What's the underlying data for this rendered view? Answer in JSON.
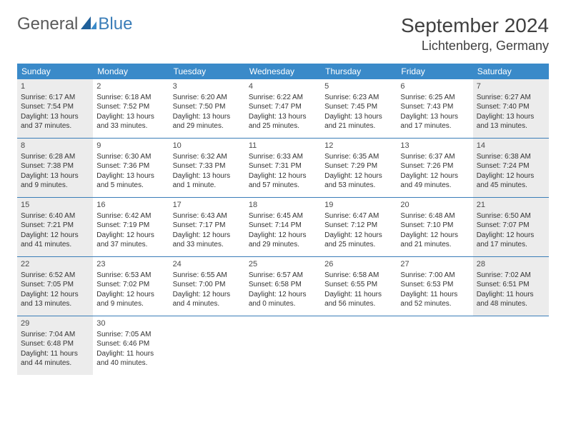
{
  "logo": {
    "text1": "General",
    "text2": "Blue"
  },
  "title": "September 2024",
  "location": "Lichtenberg, Germany",
  "colors": {
    "header_bg": "#3a8ac9",
    "header_text": "#ffffff",
    "border": "#3a7db8",
    "shaded_bg": "#ececec",
    "body_text": "#333333",
    "title_text": "#404040",
    "logo_gray": "#5a5a5a",
    "logo_blue": "#3a7db8"
  },
  "day_names": [
    "Sunday",
    "Monday",
    "Tuesday",
    "Wednesday",
    "Thursday",
    "Friday",
    "Saturday"
  ],
  "weeks": [
    [
      {
        "num": "1",
        "shaded": true,
        "sunrise": "Sunrise: 6:17 AM",
        "sunset": "Sunset: 7:54 PM",
        "day1": "Daylight: 13 hours",
        "day2": "and 37 minutes."
      },
      {
        "num": "2",
        "shaded": false,
        "sunrise": "Sunrise: 6:18 AM",
        "sunset": "Sunset: 7:52 PM",
        "day1": "Daylight: 13 hours",
        "day2": "and 33 minutes."
      },
      {
        "num": "3",
        "shaded": false,
        "sunrise": "Sunrise: 6:20 AM",
        "sunset": "Sunset: 7:50 PM",
        "day1": "Daylight: 13 hours",
        "day2": "and 29 minutes."
      },
      {
        "num": "4",
        "shaded": false,
        "sunrise": "Sunrise: 6:22 AM",
        "sunset": "Sunset: 7:47 PM",
        "day1": "Daylight: 13 hours",
        "day2": "and 25 minutes."
      },
      {
        "num": "5",
        "shaded": false,
        "sunrise": "Sunrise: 6:23 AM",
        "sunset": "Sunset: 7:45 PM",
        "day1": "Daylight: 13 hours",
        "day2": "and 21 minutes."
      },
      {
        "num": "6",
        "shaded": false,
        "sunrise": "Sunrise: 6:25 AM",
        "sunset": "Sunset: 7:43 PM",
        "day1": "Daylight: 13 hours",
        "day2": "and 17 minutes."
      },
      {
        "num": "7",
        "shaded": true,
        "sunrise": "Sunrise: 6:27 AM",
        "sunset": "Sunset: 7:40 PM",
        "day1": "Daylight: 13 hours",
        "day2": "and 13 minutes."
      }
    ],
    [
      {
        "num": "8",
        "shaded": true,
        "sunrise": "Sunrise: 6:28 AM",
        "sunset": "Sunset: 7:38 PM",
        "day1": "Daylight: 13 hours",
        "day2": "and 9 minutes."
      },
      {
        "num": "9",
        "shaded": false,
        "sunrise": "Sunrise: 6:30 AM",
        "sunset": "Sunset: 7:36 PM",
        "day1": "Daylight: 13 hours",
        "day2": "and 5 minutes."
      },
      {
        "num": "10",
        "shaded": false,
        "sunrise": "Sunrise: 6:32 AM",
        "sunset": "Sunset: 7:33 PM",
        "day1": "Daylight: 13 hours",
        "day2": "and 1 minute."
      },
      {
        "num": "11",
        "shaded": false,
        "sunrise": "Sunrise: 6:33 AM",
        "sunset": "Sunset: 7:31 PM",
        "day1": "Daylight: 12 hours",
        "day2": "and 57 minutes."
      },
      {
        "num": "12",
        "shaded": false,
        "sunrise": "Sunrise: 6:35 AM",
        "sunset": "Sunset: 7:29 PM",
        "day1": "Daylight: 12 hours",
        "day2": "and 53 minutes."
      },
      {
        "num": "13",
        "shaded": false,
        "sunrise": "Sunrise: 6:37 AM",
        "sunset": "Sunset: 7:26 PM",
        "day1": "Daylight: 12 hours",
        "day2": "and 49 minutes."
      },
      {
        "num": "14",
        "shaded": true,
        "sunrise": "Sunrise: 6:38 AM",
        "sunset": "Sunset: 7:24 PM",
        "day1": "Daylight: 12 hours",
        "day2": "and 45 minutes."
      }
    ],
    [
      {
        "num": "15",
        "shaded": true,
        "sunrise": "Sunrise: 6:40 AM",
        "sunset": "Sunset: 7:21 PM",
        "day1": "Daylight: 12 hours",
        "day2": "and 41 minutes."
      },
      {
        "num": "16",
        "shaded": false,
        "sunrise": "Sunrise: 6:42 AM",
        "sunset": "Sunset: 7:19 PM",
        "day1": "Daylight: 12 hours",
        "day2": "and 37 minutes."
      },
      {
        "num": "17",
        "shaded": false,
        "sunrise": "Sunrise: 6:43 AM",
        "sunset": "Sunset: 7:17 PM",
        "day1": "Daylight: 12 hours",
        "day2": "and 33 minutes."
      },
      {
        "num": "18",
        "shaded": false,
        "sunrise": "Sunrise: 6:45 AM",
        "sunset": "Sunset: 7:14 PM",
        "day1": "Daylight: 12 hours",
        "day2": "and 29 minutes."
      },
      {
        "num": "19",
        "shaded": false,
        "sunrise": "Sunrise: 6:47 AM",
        "sunset": "Sunset: 7:12 PM",
        "day1": "Daylight: 12 hours",
        "day2": "and 25 minutes."
      },
      {
        "num": "20",
        "shaded": false,
        "sunrise": "Sunrise: 6:48 AM",
        "sunset": "Sunset: 7:10 PM",
        "day1": "Daylight: 12 hours",
        "day2": "and 21 minutes."
      },
      {
        "num": "21",
        "shaded": true,
        "sunrise": "Sunrise: 6:50 AM",
        "sunset": "Sunset: 7:07 PM",
        "day1": "Daylight: 12 hours",
        "day2": "and 17 minutes."
      }
    ],
    [
      {
        "num": "22",
        "shaded": true,
        "sunrise": "Sunrise: 6:52 AM",
        "sunset": "Sunset: 7:05 PM",
        "day1": "Daylight: 12 hours",
        "day2": "and 13 minutes."
      },
      {
        "num": "23",
        "shaded": false,
        "sunrise": "Sunrise: 6:53 AM",
        "sunset": "Sunset: 7:02 PM",
        "day1": "Daylight: 12 hours",
        "day2": "and 9 minutes."
      },
      {
        "num": "24",
        "shaded": false,
        "sunrise": "Sunrise: 6:55 AM",
        "sunset": "Sunset: 7:00 PM",
        "day1": "Daylight: 12 hours",
        "day2": "and 4 minutes."
      },
      {
        "num": "25",
        "shaded": false,
        "sunrise": "Sunrise: 6:57 AM",
        "sunset": "Sunset: 6:58 PM",
        "day1": "Daylight: 12 hours",
        "day2": "and 0 minutes."
      },
      {
        "num": "26",
        "shaded": false,
        "sunrise": "Sunrise: 6:58 AM",
        "sunset": "Sunset: 6:55 PM",
        "day1": "Daylight: 11 hours",
        "day2": "and 56 minutes."
      },
      {
        "num": "27",
        "shaded": false,
        "sunrise": "Sunrise: 7:00 AM",
        "sunset": "Sunset: 6:53 PM",
        "day1": "Daylight: 11 hours",
        "day2": "and 52 minutes."
      },
      {
        "num": "28",
        "shaded": true,
        "sunrise": "Sunrise: 7:02 AM",
        "sunset": "Sunset: 6:51 PM",
        "day1": "Daylight: 11 hours",
        "day2": "and 48 minutes."
      }
    ],
    [
      {
        "num": "29",
        "shaded": true,
        "sunrise": "Sunrise: 7:04 AM",
        "sunset": "Sunset: 6:48 PM",
        "day1": "Daylight: 11 hours",
        "day2": "and 44 minutes."
      },
      {
        "num": "30",
        "shaded": false,
        "sunrise": "Sunrise: 7:05 AM",
        "sunset": "Sunset: 6:46 PM",
        "day1": "Daylight: 11 hours",
        "day2": "and 40 minutes."
      },
      null,
      null,
      null,
      null,
      null
    ]
  ]
}
